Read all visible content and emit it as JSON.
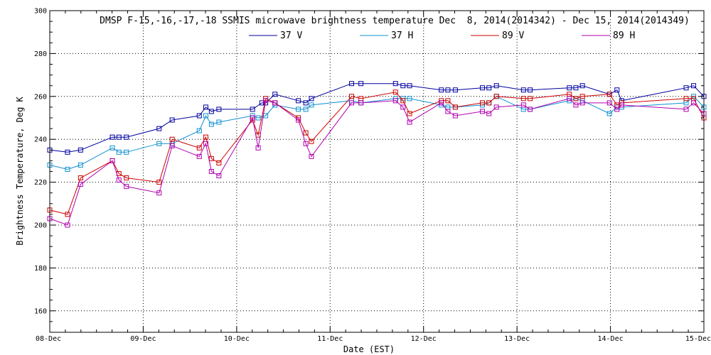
{
  "chart_data": {
    "type": "line",
    "title": "DMSP F-15,-16,-17,-18 SSMIS microwave brightness temperature Dec  8, 2014(2014342) - Dec 15, 2014(2014349)",
    "xlabel": "Date (EST)",
    "ylabel": "Brightness Temperature, Deg K",
    "xlim": [
      0,
      7
    ],
    "ylim": [
      150,
      300
    ],
    "x_ticks": [
      0,
      1,
      2,
      3,
      4,
      5,
      6,
      7
    ],
    "x_tick_labels": [
      "08-Dec",
      "09-Dec",
      "10-Dec",
      "11-Dec",
      "12-Dec",
      "13-Dec",
      "14-Dec",
      "15-Dec"
    ],
    "y_ticks": [
      160,
      180,
      200,
      220,
      240,
      260,
      280,
      300
    ],
    "y_tick_labels": [
      "160",
      "180",
      "200",
      "220",
      "240",
      "260",
      "280",
      "300"
    ],
    "grid": true,
    "series": [
      {
        "name": "37 V",
        "color": "#0000a0",
        "points": [
          [
            0.0,
            235
          ],
          [
            0.19,
            234
          ],
          [
            0.33,
            235
          ],
          [
            0.67,
            241
          ],
          [
            0.74,
            241
          ],
          [
            0.82,
            241
          ],
          [
            1.17,
            245
          ],
          [
            1.31,
            249
          ],
          [
            1.6,
            251
          ],
          [
            1.67,
            255
          ],
          [
            1.73,
            253
          ],
          [
            1.81,
            254
          ],
          [
            2.17,
            254
          ],
          [
            2.27,
            257
          ],
          [
            2.31,
            257
          ],
          [
            2.41,
            261
          ],
          [
            2.66,
            258
          ],
          [
            2.74,
            257
          ],
          [
            2.8,
            259
          ],
          [
            3.23,
            266
          ],
          [
            3.33,
            266
          ],
          [
            3.7,
            266
          ],
          [
            3.78,
            265
          ],
          [
            3.85,
            265
          ],
          [
            4.19,
            263
          ],
          [
            4.26,
            263
          ],
          [
            4.34,
            263
          ],
          [
            4.63,
            264
          ],
          [
            4.7,
            264
          ],
          [
            4.78,
            265
          ],
          [
            5.07,
            263
          ],
          [
            5.14,
            263
          ],
          [
            5.56,
            264
          ],
          [
            5.63,
            264
          ],
          [
            5.7,
            265
          ],
          [
            5.99,
            261
          ],
          [
            6.07,
            263
          ],
          [
            6.12,
            258
          ],
          [
            6.81,
            264
          ],
          [
            6.89,
            265
          ],
          [
            7.0,
            260
          ]
        ]
      },
      {
        "name": "37 H",
        "color": "#1090d0",
        "points": [
          [
            0.0,
            228
          ],
          [
            0.19,
            226
          ],
          [
            0.33,
            228
          ],
          [
            0.67,
            236
          ],
          [
            0.74,
            234
          ],
          [
            0.82,
            234
          ],
          [
            1.17,
            238
          ],
          [
            1.31,
            238
          ],
          [
            1.6,
            244
          ],
          [
            1.67,
            251
          ],
          [
            1.73,
            247
          ],
          [
            1.81,
            248
          ],
          [
            2.17,
            251
          ],
          [
            2.23,
            250
          ],
          [
            2.31,
            251
          ],
          [
            2.41,
            256
          ],
          [
            2.66,
            254
          ],
          [
            2.74,
            254
          ],
          [
            2.8,
            256
          ],
          [
            3.23,
            258
          ],
          [
            3.33,
            257
          ],
          [
            3.7,
            259
          ],
          [
            3.78,
            259
          ],
          [
            3.85,
            259
          ],
          [
            4.19,
            256
          ],
          [
            4.26,
            255
          ],
          [
            4.34,
            255
          ],
          [
            4.63,
            256
          ],
          [
            4.7,
            257
          ],
          [
            4.78,
            260
          ],
          [
            5.07,
            254
          ],
          [
            5.14,
            254
          ],
          [
            5.56,
            258
          ],
          [
            5.63,
            259
          ],
          [
            5.7,
            258
          ],
          [
            5.99,
            252
          ],
          [
            6.07,
            255
          ],
          [
            6.12,
            255
          ],
          [
            6.81,
            257
          ],
          [
            6.89,
            260
          ],
          [
            7.0,
            255
          ]
        ]
      },
      {
        "name": "89 V",
        "color": "#cc0000",
        "points": [
          [
            0.0,
            207
          ],
          [
            0.19,
            205
          ],
          [
            0.33,
            222
          ],
          [
            0.67,
            230
          ],
          [
            0.74,
            224
          ],
          [
            0.82,
            222
          ],
          [
            1.17,
            220
          ],
          [
            1.31,
            240
          ],
          [
            1.6,
            236
          ],
          [
            1.67,
            241
          ],
          [
            1.73,
            231
          ],
          [
            1.81,
            229
          ],
          [
            2.17,
            249
          ],
          [
            2.23,
            242
          ],
          [
            2.31,
            259
          ],
          [
            2.41,
            257
          ],
          [
            2.66,
            250
          ],
          [
            2.74,
            243
          ],
          [
            2.8,
            239
          ],
          [
            3.23,
            260
          ],
          [
            3.33,
            259
          ],
          [
            3.7,
            262
          ],
          [
            3.78,
            258
          ],
          [
            3.85,
            252
          ],
          [
            4.19,
            258
          ],
          [
            4.26,
            258
          ],
          [
            4.34,
            255
          ],
          [
            4.63,
            257
          ],
          [
            4.7,
            257
          ],
          [
            4.78,
            260
          ],
          [
            5.07,
            259
          ],
          [
            5.14,
            259
          ],
          [
            5.56,
            261
          ],
          [
            5.63,
            259
          ],
          [
            5.7,
            260
          ],
          [
            5.99,
            261
          ],
          [
            6.07,
            256
          ],
          [
            6.12,
            257
          ],
          [
            6.81,
            259
          ],
          [
            6.89,
            259
          ],
          [
            7.0,
            250
          ]
        ]
      },
      {
        "name": "89 H",
        "color": "#b000b0",
        "points": [
          [
            0.0,
            203
          ],
          [
            0.19,
            200
          ],
          [
            0.33,
            219
          ],
          [
            0.67,
            230
          ],
          [
            0.74,
            221
          ],
          [
            0.82,
            218
          ],
          [
            1.17,
            215
          ],
          [
            1.31,
            237
          ],
          [
            1.6,
            232
          ],
          [
            1.67,
            238
          ],
          [
            1.73,
            225
          ],
          [
            1.81,
            223
          ],
          [
            2.17,
            250
          ],
          [
            2.23,
            236
          ],
          [
            2.31,
            258
          ],
          [
            2.41,
            257
          ],
          [
            2.66,
            249
          ],
          [
            2.74,
            238
          ],
          [
            2.8,
            232
          ],
          [
            3.23,
            257
          ],
          [
            3.33,
            257
          ],
          [
            3.7,
            258
          ],
          [
            3.78,
            255
          ],
          [
            3.85,
            248
          ],
          [
            4.19,
            257
          ],
          [
            4.26,
            253
          ],
          [
            4.34,
            251
          ],
          [
            4.63,
            253
          ],
          [
            4.7,
            252
          ],
          [
            4.78,
            255
          ],
          [
            5.07,
            256
          ],
          [
            5.14,
            254
          ],
          [
            5.56,
            259
          ],
          [
            5.63,
            256
          ],
          [
            5.7,
            257
          ],
          [
            5.99,
            257
          ],
          [
            6.07,
            254
          ],
          [
            6.12,
            256
          ],
          [
            6.81,
            254
          ],
          [
            6.89,
            257
          ],
          [
            7.0,
            252
          ]
        ]
      }
    ]
  }
}
